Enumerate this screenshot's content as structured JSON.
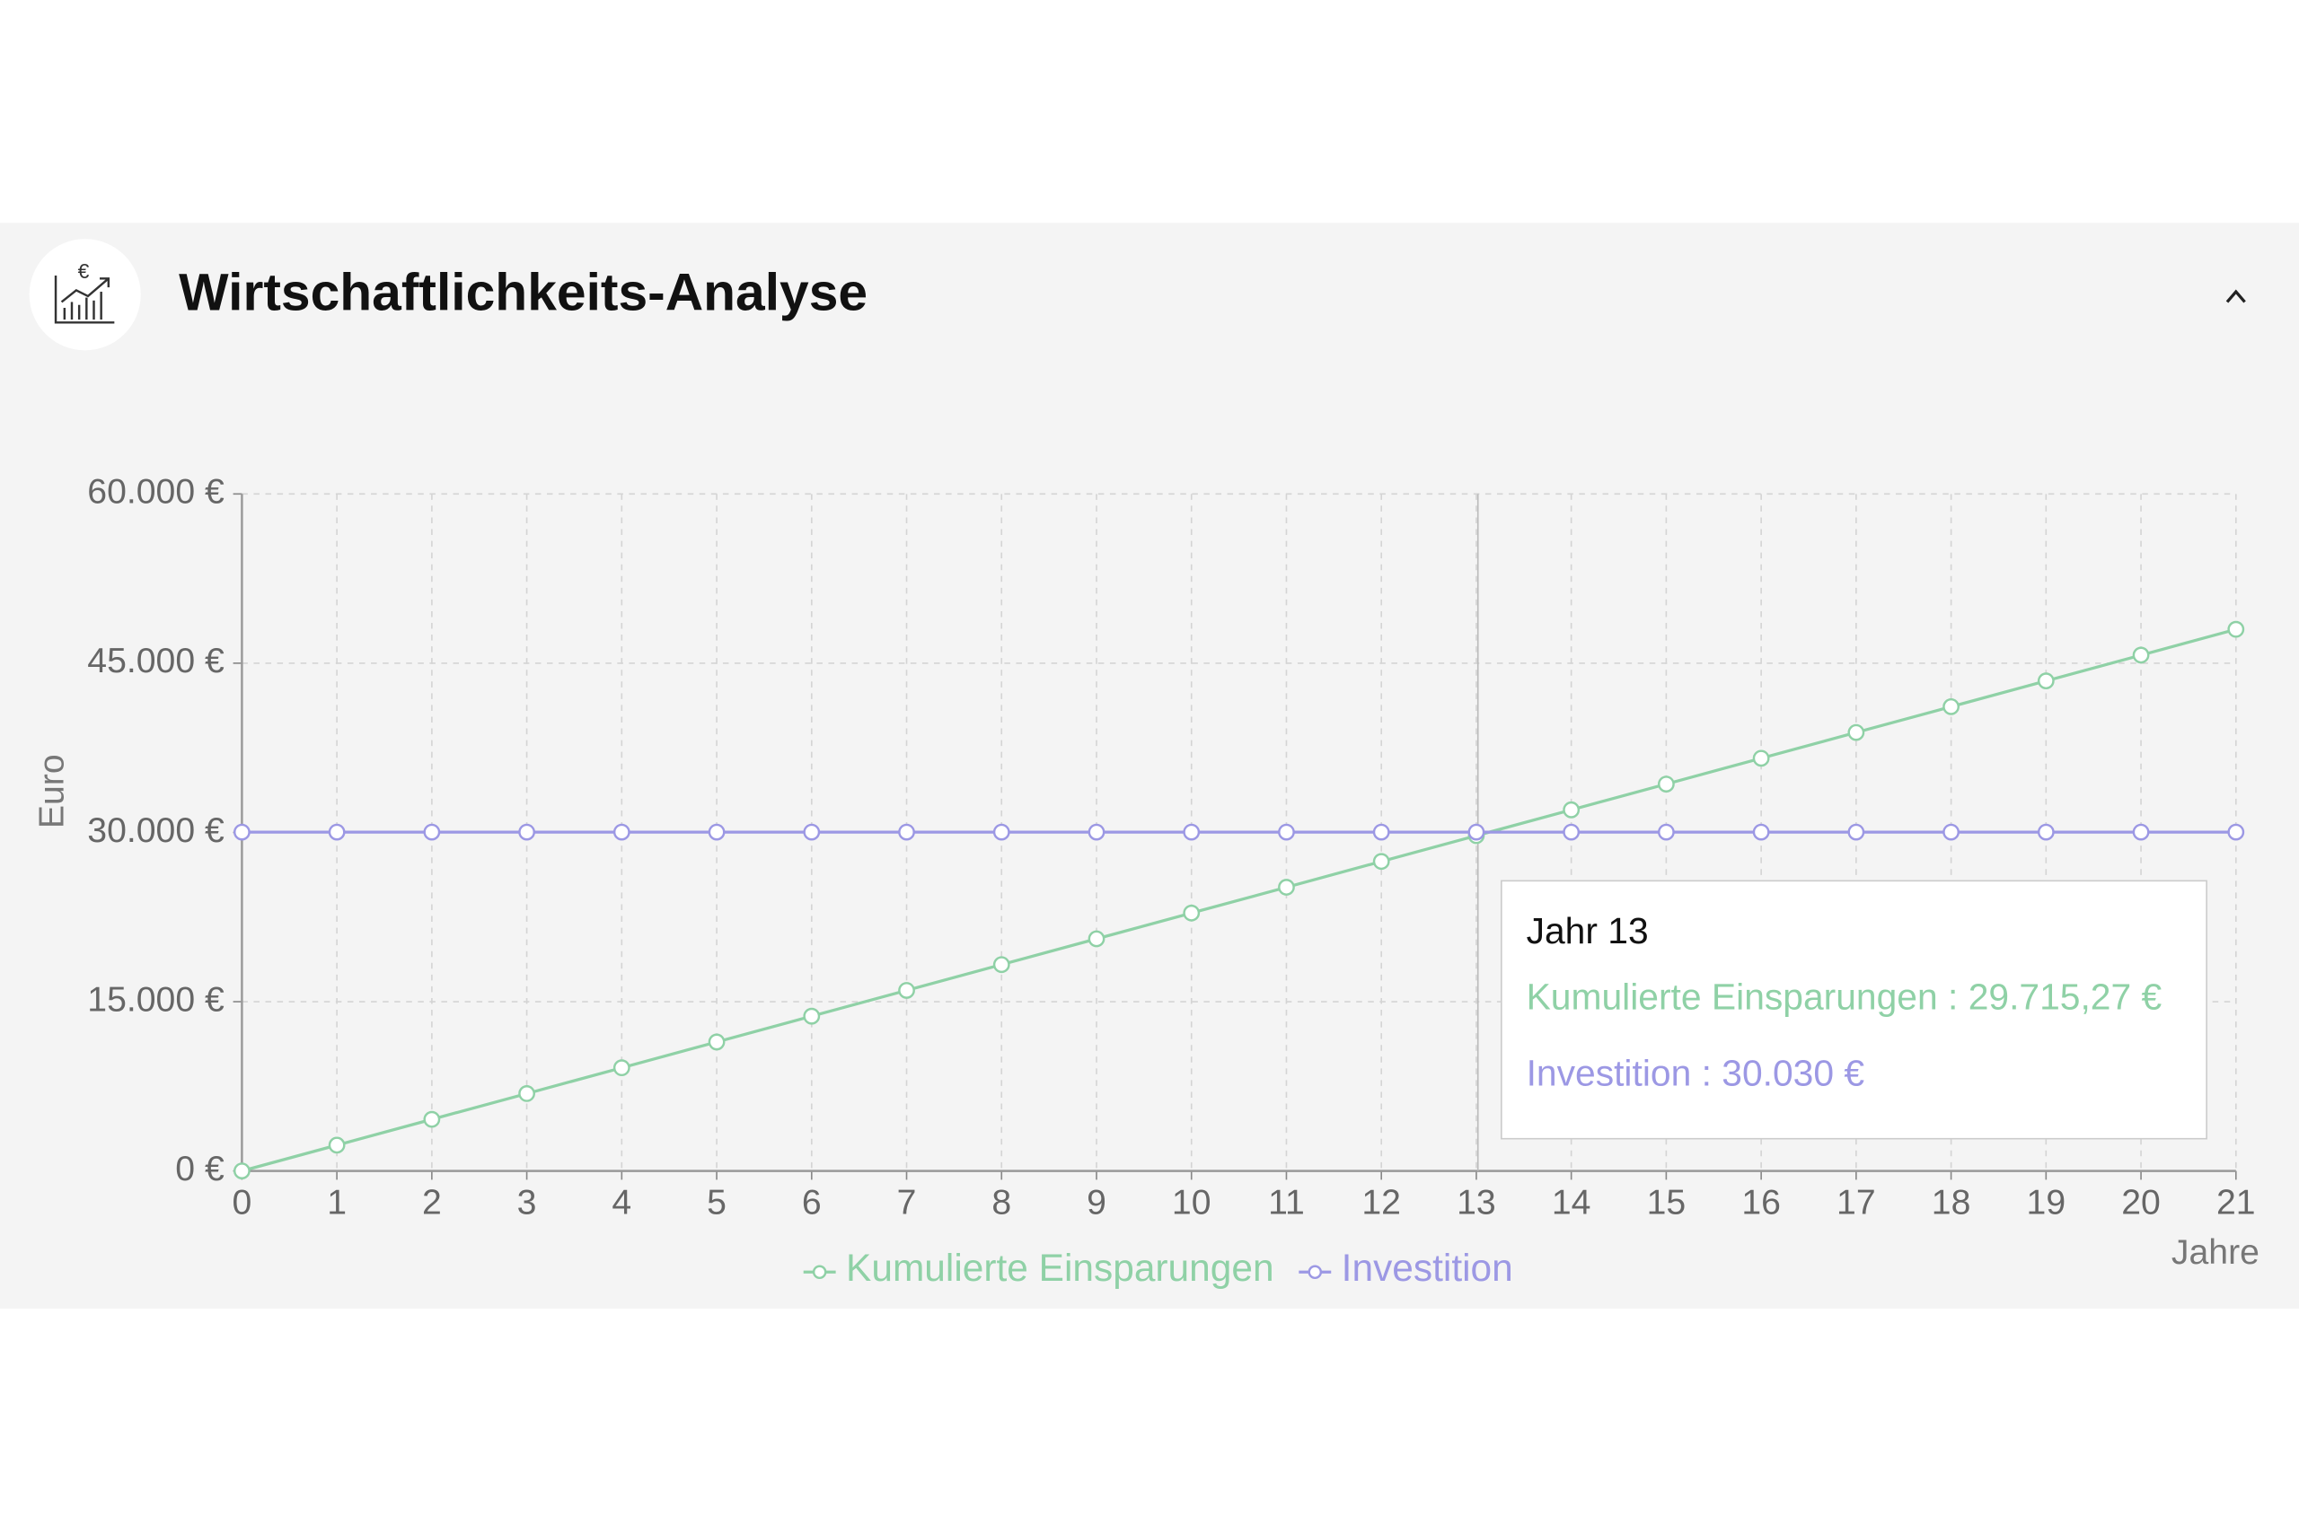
{
  "header": {
    "title": "Wirtschaftlichkeits-Analyse"
  },
  "chart_data": {
    "type": "line",
    "y_label": "Euro",
    "x_label": "Jahre",
    "x": [
      0,
      1,
      2,
      3,
      4,
      5,
      6,
      7,
      8,
      9,
      10,
      11,
      12,
      13,
      14,
      15,
      16,
      17,
      18,
      19,
      20,
      21
    ],
    "xlim": [
      0,
      21
    ],
    "xticks": [
      0,
      1,
      2,
      3,
      4,
      5,
      6,
      7,
      8,
      9,
      10,
      11,
      12,
      13,
      14,
      15,
      16,
      17,
      18,
      19,
      20,
      21
    ],
    "ylim": [
      0,
      60000
    ],
    "yticks": [
      {
        "value": 0,
        "label": "0 €"
      },
      {
        "value": 15000,
        "label": "15.000 €"
      },
      {
        "value": 30000,
        "label": "30.000 €"
      },
      {
        "value": 45000,
        "label": "45.000 €"
      },
      {
        "value": 60000,
        "label": "60.000 €"
      }
    ],
    "grid": true,
    "series": [
      {
        "name": "Kumulierte Einsparungen",
        "color": "#8fd1a6",
        "values": [
          0,
          2286,
          4572,
          6857,
          9143,
          11429,
          13715,
          16001,
          18286,
          20572,
          22858,
          25144,
          27430,
          29715.27,
          32001,
          34287,
          36573,
          38858,
          41144,
          43430,
          45716,
          48002
        ]
      },
      {
        "name": "Investition",
        "color": "#9c98e4",
        "values": [
          30030,
          30030,
          30030,
          30030,
          30030,
          30030,
          30030,
          30030,
          30030,
          30030,
          30030,
          30030,
          30030,
          30030,
          30030,
          30030,
          30030,
          30030,
          30030,
          30030,
          30030,
          30030
        ]
      }
    ],
    "tooltip": {
      "title": "Jahr 13",
      "lines": [
        "Kumulierte Einsparungen : 29.715,27 €",
        "Investition : 30.030 €"
      ]
    }
  }
}
